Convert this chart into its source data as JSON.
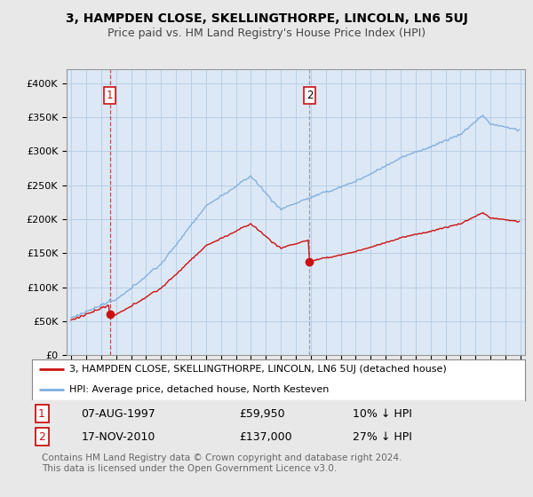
{
  "title": "3, HAMPDEN CLOSE, SKELLINGTHORPE, LINCOLN, LN6 5UJ",
  "subtitle": "Price paid vs. HM Land Registry's House Price Index (HPI)",
  "ylim": [
    0,
    420000
  ],
  "yticks": [
    0,
    50000,
    100000,
    150000,
    200000,
    250000,
    300000,
    350000,
    400000
  ],
  "ytick_labels": [
    "£0",
    "£50K",
    "£100K",
    "£150K",
    "£200K",
    "£250K",
    "£300K",
    "£350K",
    "£400K"
  ],
  "background_color": "#e8e8e8",
  "plot_background": "#dce8f5",
  "grid_color": "#b8cfe8",
  "hpi_color": "#7aabdd",
  "price_color": "#cc1111",
  "purchase1_year": 1997.6,
  "purchase1_price": 59950,
  "purchase2_year": 2010.88,
  "purchase2_price": 137000,
  "legend_label1": "3, HAMPDEN CLOSE, SKELLINGTHORPE, LINCOLN, LN6 5UJ (detached house)",
  "legend_label2": "HPI: Average price, detached house, North Kesteven",
  "annotation1_date": "07-AUG-1997",
  "annotation1_price": "£59,950",
  "annotation1_hpi": "10% ↓ HPI",
  "annotation2_date": "17-NOV-2010",
  "annotation2_price": "£137,000",
  "annotation2_hpi": "27% ↓ HPI",
  "footer": "Contains HM Land Registry data © Crown copyright and database right 2024.\nThis data is licensed under the Open Government Licence v3.0.",
  "title_fontsize": 10,
  "subtitle_fontsize": 9,
  "tick_fontsize": 8,
  "legend_fontsize": 8.5,
  "annotation_fontsize": 9,
  "footer_fontsize": 7.5,
  "xstart": 1995,
  "xend": 2025
}
